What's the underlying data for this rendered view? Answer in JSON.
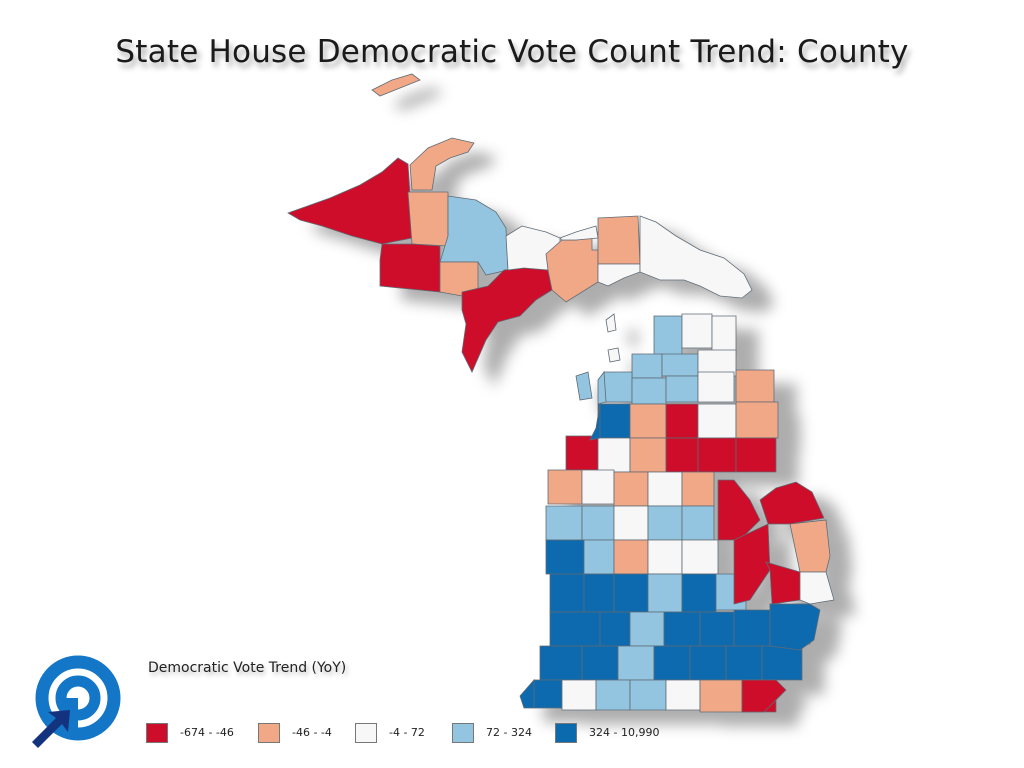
{
  "title": "State House Democratic Vote Count Trend: County",
  "legend": {
    "title": "Democratic Vote Trend (YoY)",
    "items": [
      {
        "label": "-674 - -46",
        "color": "#cd0e2a"
      },
      {
        "label": "-46 - -4",
        "color": "#f1a887"
      },
      {
        "label": "-4 - 72",
        "color": "#f7f7f7"
      },
      {
        "label": "72 - 324",
        "color": "#93c4e0"
      },
      {
        "label": "324 - 10,990",
        "color": "#0b6aae"
      }
    ]
  },
  "colors": {
    "border": "#5f6b75",
    "logo": "#1376c6",
    "logo_arrow": "#13337e"
  },
  "icons": {
    "logo": "circular-arrow-logo"
  }
}
